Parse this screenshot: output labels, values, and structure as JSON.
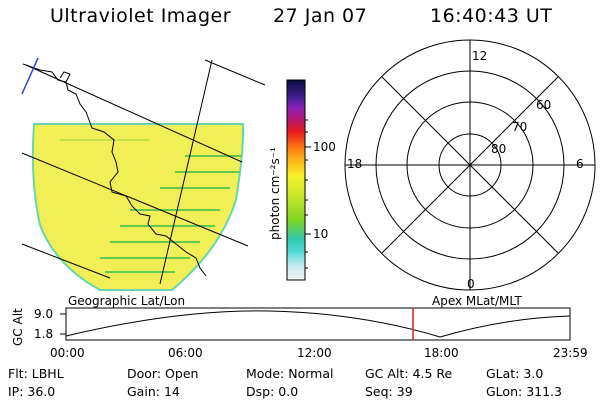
{
  "header": {
    "title": "Ultraviolet Imager",
    "date": "27 Jan 07",
    "time": "16:40:43 UT"
  },
  "colorbar": {
    "unit_label": "photon cm⁻²s⁻¹",
    "ticks": [
      "100",
      "10"
    ]
  },
  "polar": {
    "mlt_labels": [
      "12",
      "18",
      "6",
      "0"
    ],
    "lat_labels": [
      "60",
      "70",
      "80"
    ]
  },
  "plot": {
    "left_label": "Geographic Lat/Lon",
    "right_label": "Apex MLat/MLT",
    "y_axis_title": "GC Alt",
    "y_ticks": [
      "9.0",
      "1.8"
    ],
    "x_ticks": [
      "00:00",
      "06:00",
      "12:00",
      "18:00",
      "23:59"
    ]
  },
  "footer": {
    "rows": [
      [
        {
          "label": "Flt:",
          "value": "LBHL"
        },
        {
          "label": "Door:",
          "value": "Open"
        },
        {
          "label": "Mode:",
          "value": "Normal"
        },
        {
          "label": "GC Alt:",
          "value": "4.5 Re"
        },
        {
          "label": "GLat:",
          "value": "3.0"
        }
      ],
      [
        {
          "label": "IP:",
          "value": "36.0"
        },
        {
          "label": "Gain:",
          "value": "14"
        },
        {
          "label": "Dsp:",
          "value": "0.0"
        },
        {
          "label": "Seq:",
          "value": "39"
        },
        {
          "label": "GLon:",
          "value": "311.3"
        }
      ]
    ]
  },
  "colors": {
    "image_fill": "#f2ee55",
    "image_border": "#66d6b0",
    "stripe": "#63c94b",
    "marker": "#dd1c1c"
  }
}
